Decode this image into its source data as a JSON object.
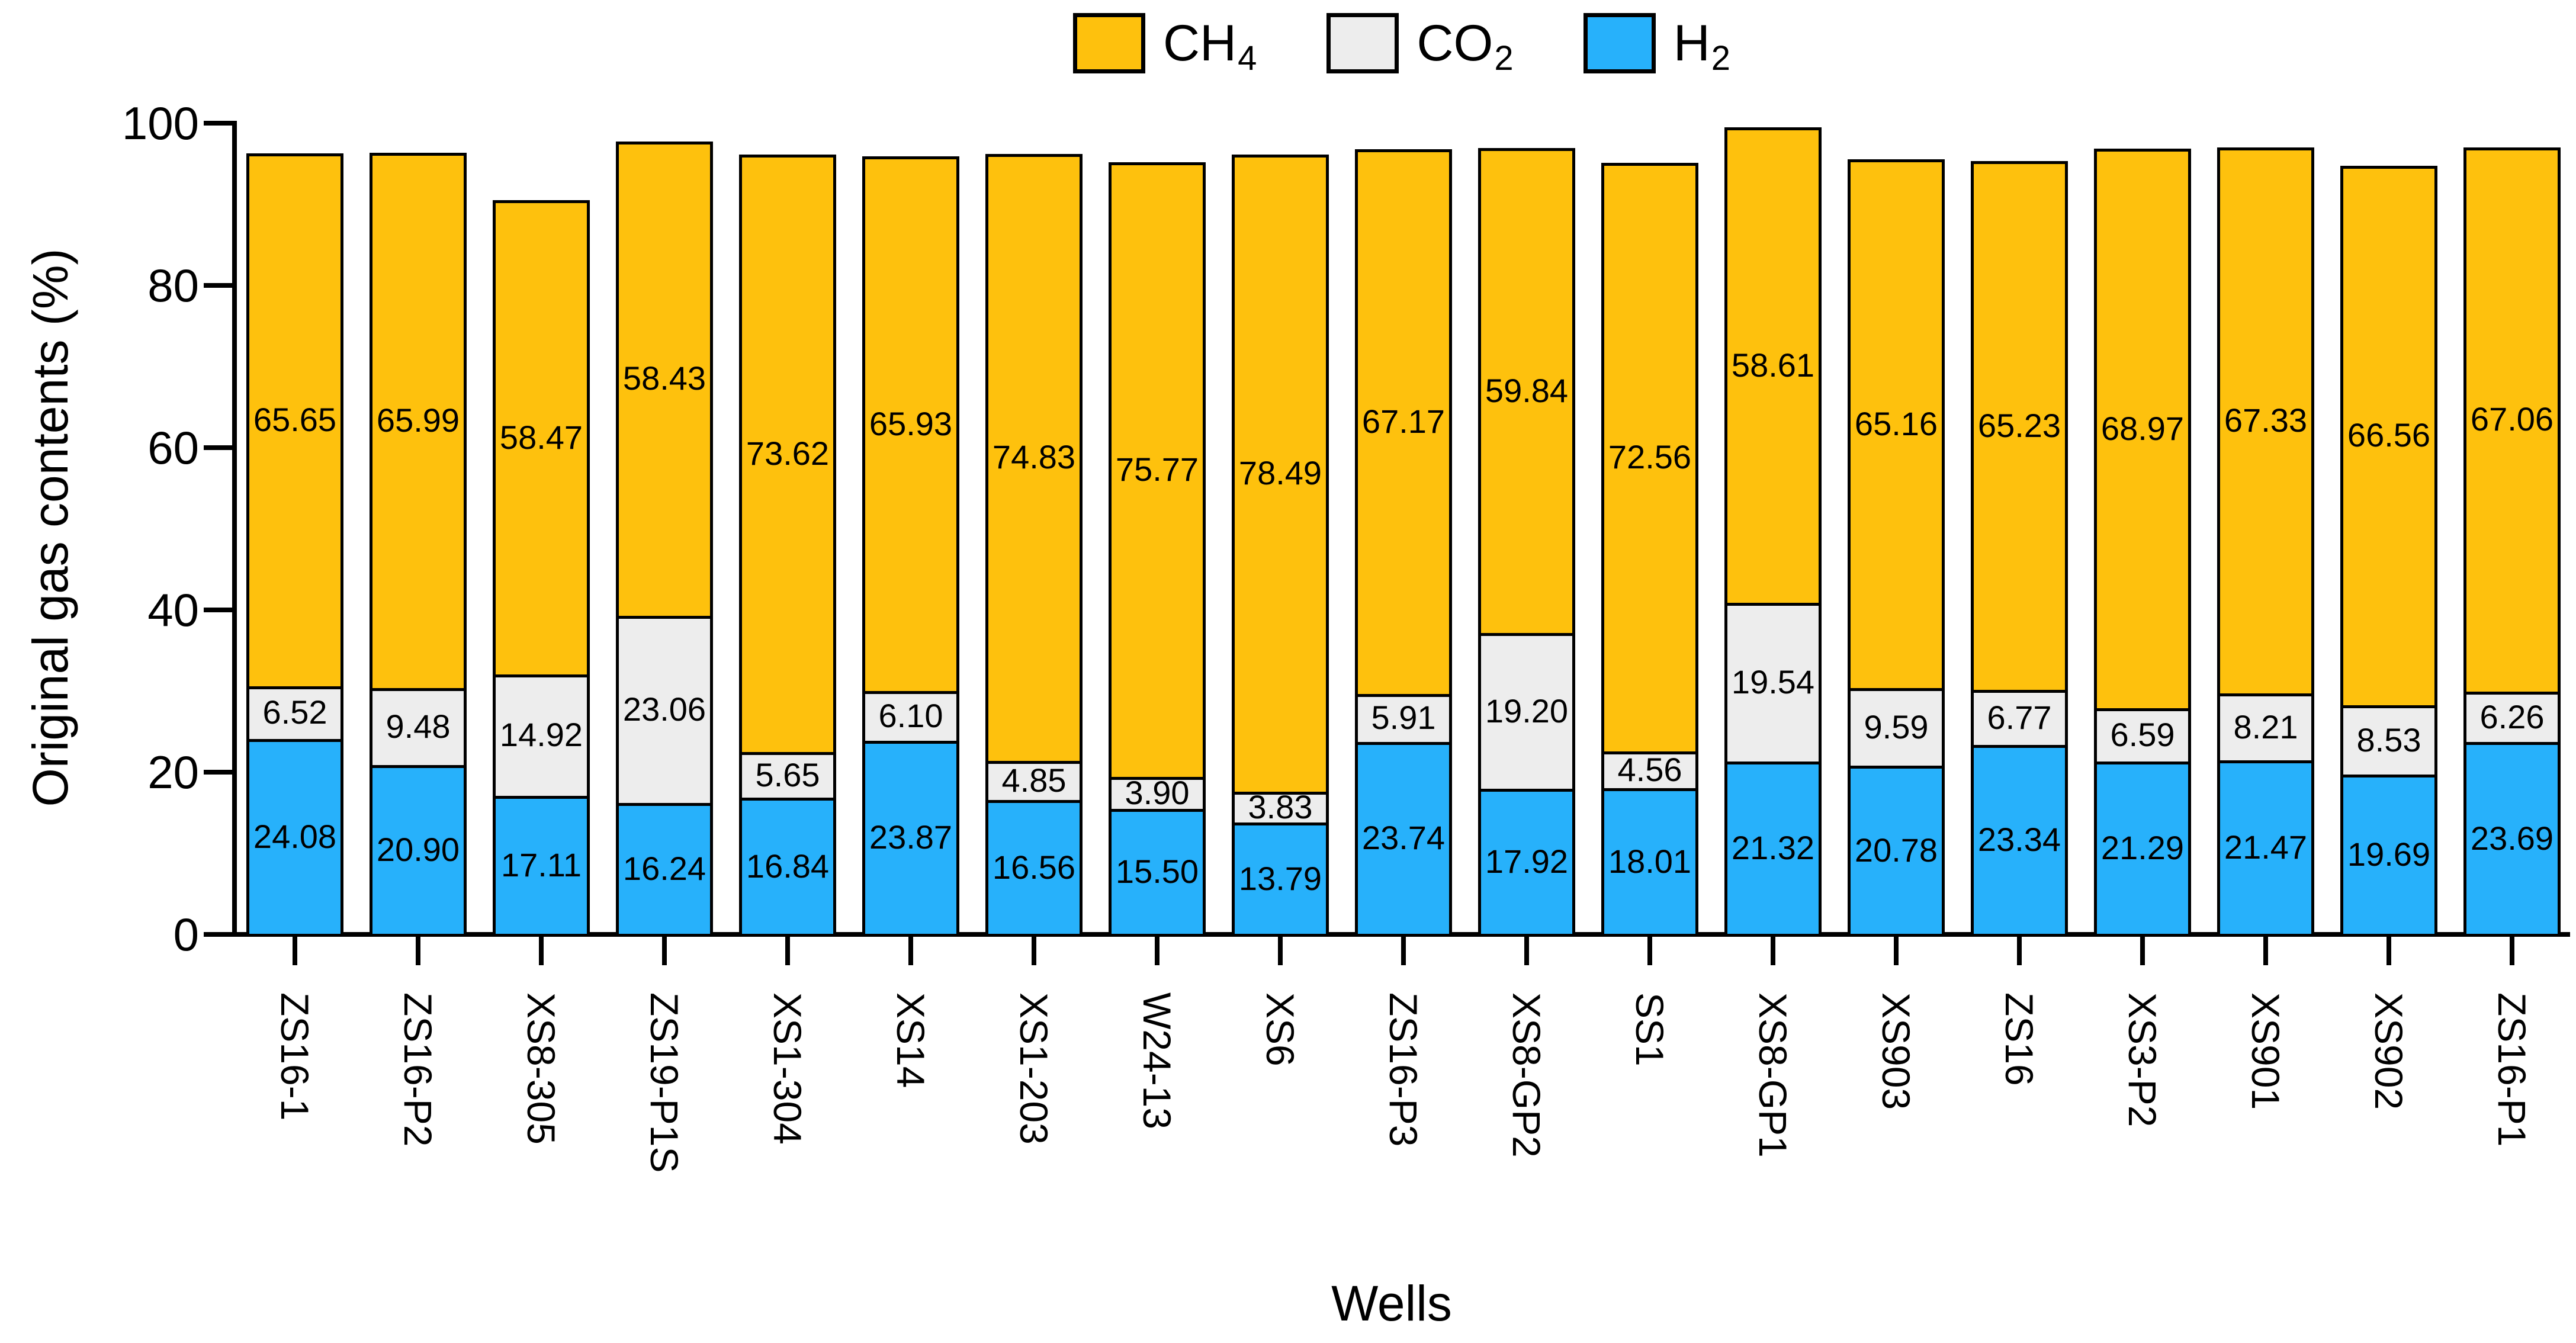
{
  "chart_data": {
    "type": "bar",
    "stacked": true,
    "xlabel": "Wells",
    "ylabel": "Original gas contents (%)",
    "ylim": [
      0,
      100
    ],
    "yticks": [
      0,
      20,
      40,
      60,
      80,
      100
    ],
    "grid": false,
    "legend_position": "top-center",
    "categories": [
      "ZS16-1",
      "ZS16-P2",
      "XS8-305",
      "ZS19-P1S",
      "XS1-304",
      "XS14",
      "XS1-203",
      "W24-13",
      "XS6",
      "ZS16-P3",
      "XS8-GP2",
      "SS1",
      "XS8-GP1",
      "XS903",
      "ZS16",
      "XS3-P2",
      "XS901",
      "XS902",
      "ZS16-P1"
    ],
    "stack_bottom_to_top": [
      "H2",
      "CO2",
      "CH4"
    ],
    "series": [
      {
        "name": "CH4",
        "label_base": "CH",
        "label_sub": "4",
        "color": "#FEC10D",
        "values": [
          "65.65",
          "65.99",
          "58.47",
          "58.43",
          "73.62",
          "65.93",
          "74.83",
          "75.77",
          "78.49",
          "67.17",
          "59.84",
          "72.56",
          "58.61",
          "65.16",
          "65.23",
          "68.97",
          "67.33",
          "66.56",
          "67.06"
        ]
      },
      {
        "name": "CO2",
        "label_base": "CO",
        "label_sub": "2",
        "color": "#EDEDED",
        "values": [
          "6.52",
          "9.48",
          "14.92",
          "23.06",
          "5.65",
          "6.10",
          "4.85",
          "3.90",
          "3.83",
          "5.91",
          "19.20",
          "4.56",
          "19.54",
          "9.59",
          "6.77",
          "6.59",
          "8.21",
          "8.53",
          "6.26"
        ]
      },
      {
        "name": "H2",
        "label_base": "H",
        "label_sub": "2",
        "color": "#27B1FB",
        "values": [
          "24.08",
          "20.90",
          "17.11",
          "16.24",
          "16.84",
          "23.87",
          "16.56",
          "15.50",
          "13.79",
          "23.74",
          "17.92",
          "18.01",
          "21.32",
          "20.78",
          "23.34",
          "21.29",
          "21.47",
          "19.69",
          "23.69"
        ]
      }
    ]
  }
}
